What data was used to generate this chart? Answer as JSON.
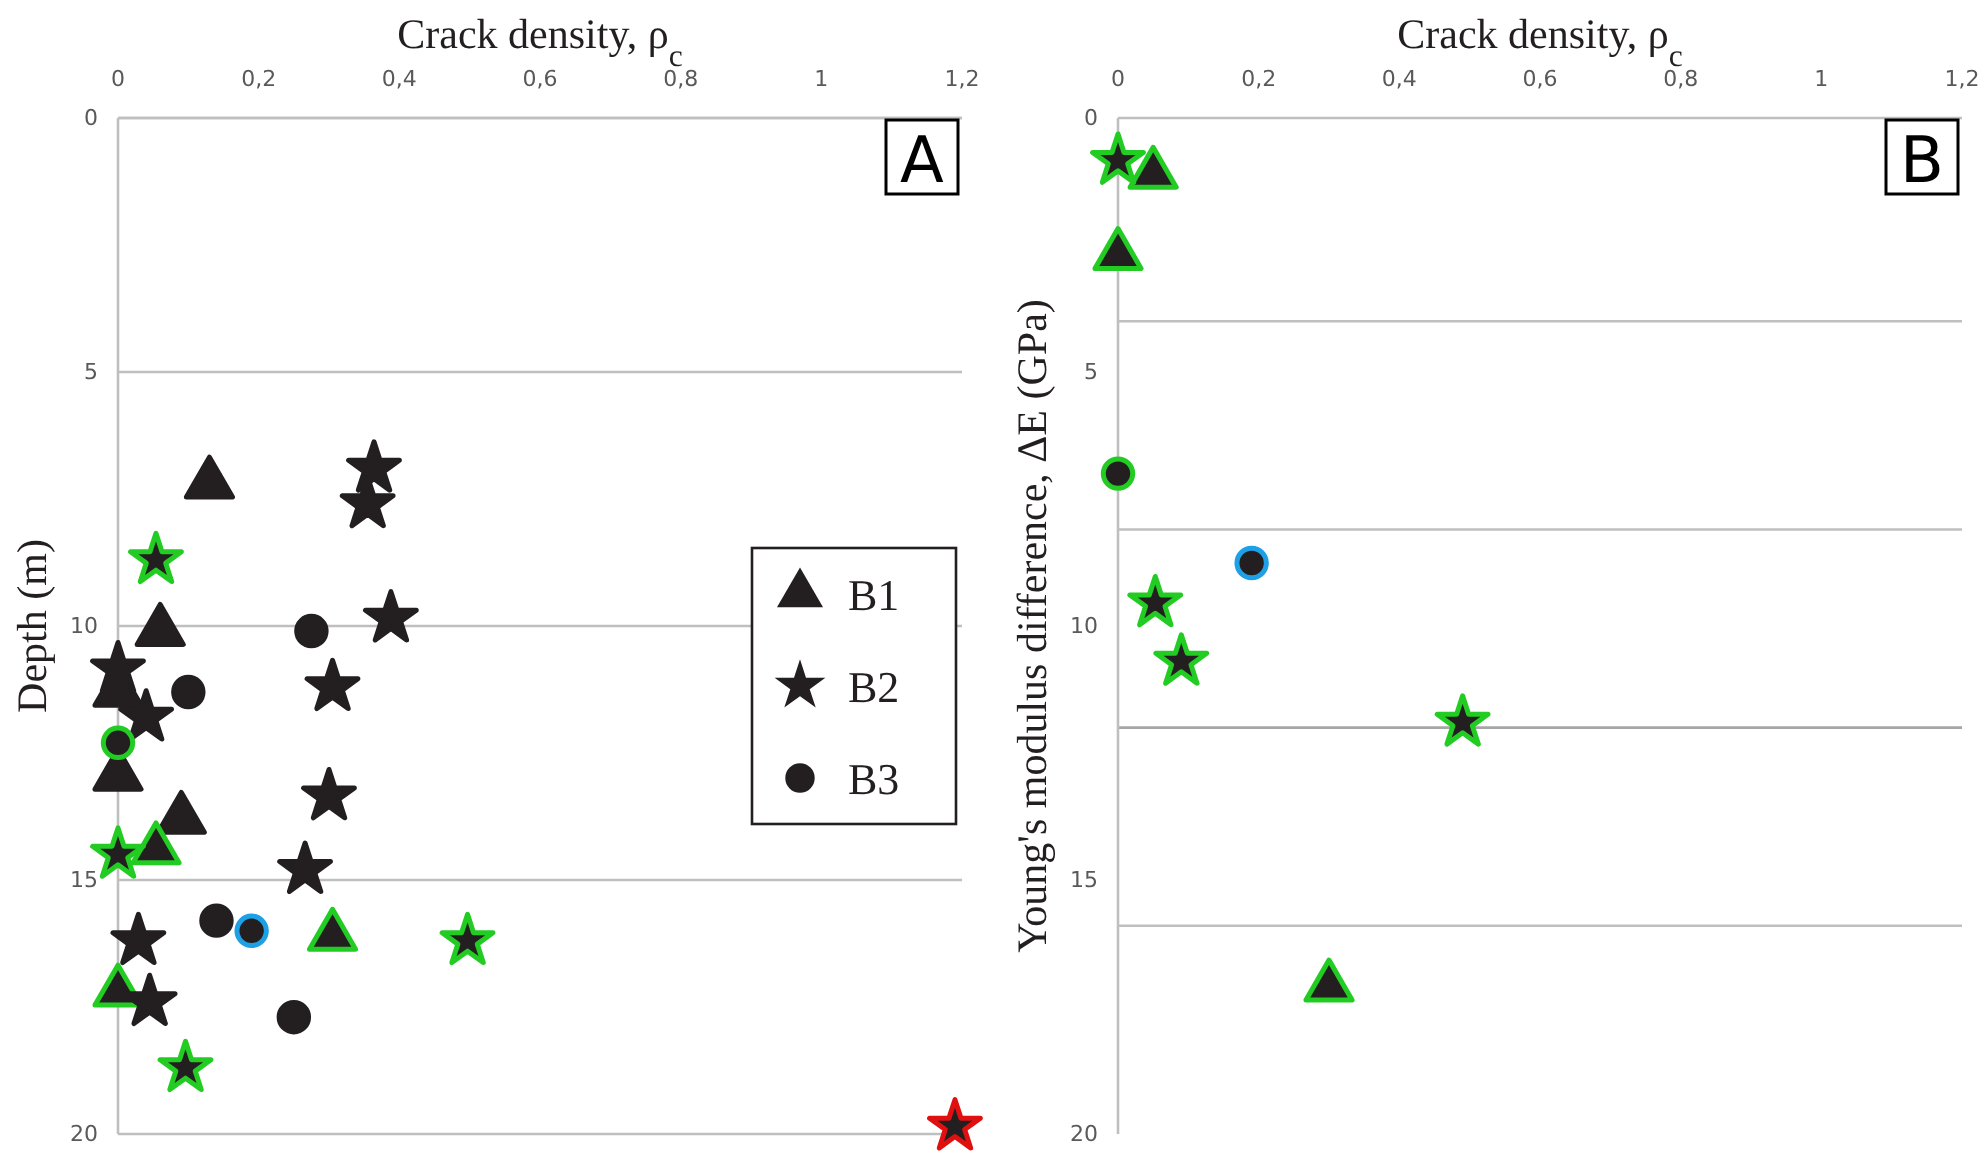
{
  "chart_data": [
    {
      "type": "scatter",
      "title": "A",
      "xlabel": "Crack density, ρ$_{c}$",
      "ylabel": "Depth (m)",
      "xlim": [
        0,
        1.2
      ],
      "xticks": [
        {
          "value": 0,
          "label": "0"
        },
        {
          "value": 0.2,
          "label": "0,2"
        },
        {
          "value": 0.4,
          "label": "0,4"
        },
        {
          "value": 0.6,
          "label": "0,6"
        },
        {
          "value": 0.8,
          "label": "0,8"
        },
        {
          "value": 1,
          "label": "1"
        },
        {
          "value": 1.2,
          "label": "1,2"
        }
      ],
      "ylim": [
        20,
        0
      ],
      "yticks": [
        {
          "value": 0,
          "label": "0"
        },
        {
          "value": 5,
          "label": "5"
        },
        {
          "value": 10,
          "label": "10"
        },
        {
          "value": 15,
          "label": "15"
        },
        {
          "value": 20,
          "label": "20"
        }
      ],
      "grid": "y",
      "legend": "right",
      "series": [
        {
          "name": "B1",
          "marker": "triangle",
          "color": "#231f20",
          "x": [
            0.13,
            0.06,
            0,
            0,
            0.09,
            0.054,
            0.305,
            0
          ],
          "values": [
            7.2,
            10.1,
            11.3,
            12.95,
            13.8,
            14.4,
            16.1,
            17.2
          ],
          "colors": [
            "#231f20",
            "#231f20",
            "#231f20",
            "#231f20",
            "#231f20",
            "#22cc22",
            "#22cc22",
            "#22cc22"
          ]
        },
        {
          "name": "B2",
          "marker": "star",
          "color": "#231f20",
          "x": [
            0.364,
            0.355,
            0.054,
            0.388,
            0,
            0.305,
            0.04,
            0.3,
            0,
            0.266,
            0.029,
            0.497,
            0.045,
            0.096,
            1.19
          ],
          "values": [
            6.9,
            7.6,
            8.7,
            9.85,
            10.85,
            11.2,
            11.8,
            13.35,
            14.5,
            14.8,
            16.2,
            16.2,
            17.4,
            18.7,
            19.85
          ],
          "colors": [
            "#231f20",
            "#231f20",
            "#22cc22",
            "#231f20",
            "#231f20",
            "#231f20",
            "#231f20",
            "#231f20",
            "#22cc22",
            "#231f20",
            "#231f20",
            "#22cc22",
            "#231f20",
            "#22cc22",
            "#e01010"
          ]
        },
        {
          "name": "B3",
          "marker": "circle",
          "color": "#231f20",
          "x": [
            0.275,
            0.1,
            0,
            0.14,
            0.19,
            0.25
          ],
          "values": [
            10.1,
            11.3,
            12.3,
            15.8,
            16.0,
            17.7
          ],
          "colors": [
            "#231f20",
            "#231f20",
            "#22cc22",
            "#231f20",
            "#1ea0e6",
            "#231f20"
          ]
        }
      ]
    },
    {
      "type": "scatter",
      "title": "B",
      "xlabel": "Crack density, ρ$_{c}$",
      "ylabel": "Young's modulus difference, ΔE (GPa)",
      "xlim": [
        0,
        1.2
      ],
      "xticks": [
        {
          "value": 0,
          "label": "0"
        },
        {
          "value": 0.2,
          "label": "0,2"
        },
        {
          "value": 0.4,
          "label": "0,4"
        },
        {
          "value": 0.6,
          "label": "0,6"
        },
        {
          "value": 0.8,
          "label": "0,8"
        },
        {
          "value": 1,
          "label": "1"
        },
        {
          "value": 1.2,
          "label": "1,2"
        }
      ],
      "ylim": [
        20,
        0
      ],
      "yticks": [
        {
          "value": 0,
          "label": "0"
        },
        {
          "value": 5,
          "label": "5"
        },
        {
          "value": 10,
          "label": "10"
        },
        {
          "value": 15,
          "label": "15"
        },
        {
          "value": 20,
          "label": "20"
        }
      ],
      "ref_lines": [
        {
          "axis": "y",
          "value": 4,
          "color": "#bfbfbf"
        },
        {
          "axis": "y",
          "value": 8.1,
          "color": "#bfbfbf"
        },
        {
          "axis": "y",
          "value": 12,
          "color": "#a6a6a6"
        },
        {
          "axis": "y",
          "value": 15.9,
          "color": "#bfbfbf"
        }
      ],
      "series": [
        {
          "marker": "triangle",
          "color": "#231f20",
          "x": [
            0.05,
            0,
            0.3
          ],
          "values": [
            1.1,
            2.7,
            17.1
          ],
          "colors": [
            "#22cc22",
            "#22cc22",
            "#22cc22"
          ]
        },
        {
          "marker": "star",
          "color": "#231f20",
          "x": [
            0,
            0.053,
            0.09,
            0.49
          ],
          "values": [
            0.84,
            9.55,
            10.7,
            11.9
          ],
          "colors": [
            "#22cc22",
            "#22cc22",
            "#22cc22",
            "#22cc22"
          ]
        },
        {
          "marker": "circle",
          "color": "#231f20",
          "x": [
            0,
            0.19
          ],
          "values": [
            7.0,
            8.76
          ],
          "colors": [
            "#22cc22",
            "#1ea0e6"
          ]
        }
      ]
    }
  ]
}
